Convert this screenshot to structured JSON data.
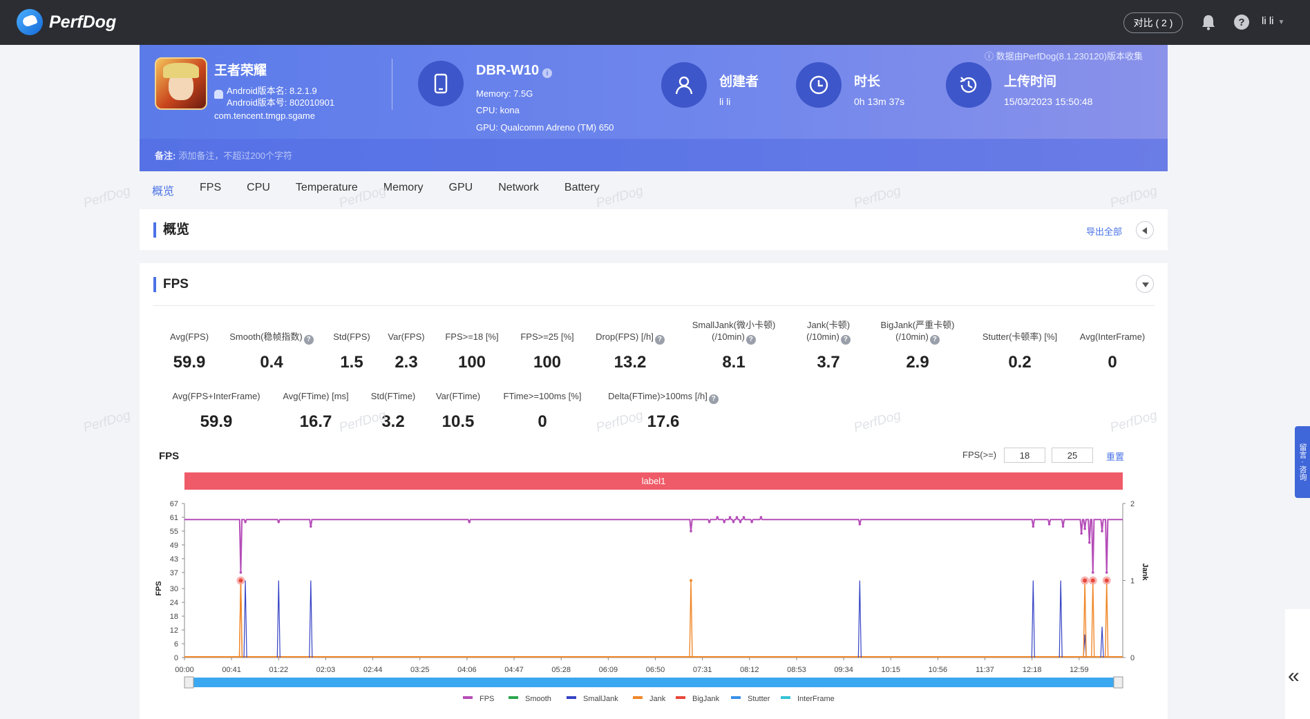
{
  "app": {
    "name": "PerfDog"
  },
  "topbar": {
    "compare_label": "对比 ( 2 )",
    "user_name": "li li",
    "colors": {
      "bg": "#2b2d33"
    }
  },
  "game": {
    "name": "王者荣耀",
    "version_name": "Android版本名: 8.2.1.9",
    "version_code": "Android版本号: 802010901",
    "package": "com.tencent.tmgp.sgame"
  },
  "device": {
    "name": "DBR-W10",
    "memory": "Memory: 7.5G",
    "cpu": "CPU: kona",
    "gpu": "GPU: Qualcomm Adreno (TM) 650"
  },
  "creator": {
    "title": "创建者",
    "value": "li li"
  },
  "duration": {
    "title": "时长",
    "value": "0h 13m 37s"
  },
  "upload": {
    "title": "上传时间",
    "value": "15/03/2023 15:50:48"
  },
  "collect_note": "ⓘ 数据由PerfDog(8.1.230120)版本收集",
  "note": {
    "label": "备注:",
    "placeholder": "添加备注，不超过200个字符"
  },
  "tabs": [
    "概览",
    "FPS",
    "CPU",
    "Temperature",
    "Memory",
    "GPU",
    "Network",
    "Battery"
  ],
  "overview": {
    "title": "概览",
    "export_label": "导出全部"
  },
  "fps_section": {
    "title": "FPS",
    "metrics_row1": [
      {
        "label": "Avg(FPS)",
        "value": "59.9"
      },
      {
        "label": "Smooth(稳帧指数)",
        "value": "0.4",
        "help": true
      },
      {
        "label": "Std(FPS)",
        "value": "1.5"
      },
      {
        "label": "Var(FPS)",
        "value": "2.3"
      },
      {
        "label": "FPS>=18 [%]",
        "value": "100"
      },
      {
        "label": "FPS>=25 [%]",
        "value": "100"
      },
      {
        "label": "Drop(FPS) [/h]",
        "value": "13.2",
        "help": true
      },
      {
        "label": "SmallJank(微小卡顿)",
        "label2": "(/10min)",
        "value": "8.1",
        "help": true
      },
      {
        "label": "Jank(卡顿)",
        "label2": "(/10min)",
        "value": "3.7",
        "help": true
      },
      {
        "label": "BigJank(严重卡顿)",
        "label2": "(/10min)",
        "value": "2.9",
        "help": true
      },
      {
        "label": "Stutter(卡顿率) [%]",
        "value": "0.2"
      },
      {
        "label": "Avg(InterFrame)",
        "value": "0"
      }
    ],
    "metrics_row2": [
      {
        "label": "Avg(FPS+InterFrame)",
        "value": "59.9"
      },
      {
        "label": "Avg(FTime) [ms]",
        "value": "16.7"
      },
      {
        "label": "Std(FTime)",
        "value": "3.2"
      },
      {
        "label": "Var(FTime)",
        "value": "10.5"
      },
      {
        "label": "FTime>=100ms [%]",
        "value": "0"
      },
      {
        "label": "Delta(FTime)>100ms [/h]",
        "value": "17.6",
        "help": true
      }
    ]
  },
  "chart_controls": {
    "title": "FPS",
    "threshold_label": "FPS(>=)",
    "threshold_1": "18",
    "threshold_2": "25",
    "reset_label": "重置",
    "label_bar": "label1"
  },
  "feedback_label": "留言 · 咨询",
  "watermark": "PerfDog",
  "chart_data": {
    "type": "line",
    "title": "",
    "xlabel": "",
    "ylabel": "FPS",
    "y2label": "Jank",
    "x_ticks": [
      "00:00",
      "00:41",
      "01:22",
      "02:03",
      "02:44",
      "03:25",
      "04:06",
      "04:47",
      "05:28",
      "06:09",
      "06:50",
      "07:31",
      "08:12",
      "08:53",
      "09:34",
      "10:15",
      "10:56",
      "11:37",
      "12:18",
      "12:59"
    ],
    "y_ticks": [
      0,
      6,
      12,
      18,
      24,
      30,
      37,
      43,
      49,
      55,
      61,
      67
    ],
    "y2_ticks": [
      0,
      1,
      2
    ],
    "ylim": [
      0,
      67
    ],
    "y2lim": [
      0,
      2
    ],
    "x_range_seconds": [
      0,
      817
    ],
    "series": [
      {
        "name": "FPS",
        "color": "#b54db8"
      },
      {
        "name": "Smooth",
        "color": "#2ca64d"
      },
      {
        "name": "SmallJank",
        "color": "#3442c4"
      },
      {
        "name": "Jank",
        "color": "#f0882a"
      },
      {
        "name": "BigJank",
        "color": "#e8473a"
      },
      {
        "name": "Stutter",
        "color": "#3a8fe8"
      },
      {
        "name": "InterFrame",
        "color": "#33c2d6"
      }
    ],
    "fps_baseline": 60,
    "fps_dips": [
      {
        "t": 49,
        "fps": 37
      },
      {
        "t": 53,
        "fps": 59
      },
      {
        "t": 82,
        "fps": 59
      },
      {
        "t": 110,
        "fps": 57
      },
      {
        "t": 248,
        "fps": 59
      },
      {
        "t": 441,
        "fps": 55
      },
      {
        "t": 457,
        "fps": 59
      },
      {
        "t": 464,
        "fps": 61
      },
      {
        "t": 470,
        "fps": 59
      },
      {
        "t": 475,
        "fps": 61
      },
      {
        "t": 478,
        "fps": 59
      },
      {
        "t": 481,
        "fps": 61
      },
      {
        "t": 484,
        "fps": 59
      },
      {
        "t": 487,
        "fps": 61
      },
      {
        "t": 494,
        "fps": 59
      },
      {
        "t": 502,
        "fps": 61
      },
      {
        "t": 588,
        "fps": 58
      },
      {
        "t": 739,
        "fps": 57
      },
      {
        "t": 753,
        "fps": 58
      },
      {
        "t": 765,
        "fps": 57
      },
      {
        "t": 781,
        "fps": 54
      },
      {
        "t": 784,
        "fps": 56
      },
      {
        "t": 788,
        "fps": 50
      },
      {
        "t": 791,
        "fps": 37
      },
      {
        "t": 799,
        "fps": 55
      },
      {
        "t": 803,
        "fps": 37
      }
    ],
    "small_jank": [
      {
        "t": 53,
        "v": 1
      },
      {
        "t": 82,
        "v": 1
      },
      {
        "t": 110,
        "v": 1
      },
      {
        "t": 588,
        "v": 1
      },
      {
        "t": 739,
        "v": 1
      },
      {
        "t": 763,
        "v": 1
      },
      {
        "t": 784,
        "v": 0.3
      },
      {
        "t": 799,
        "v": 0.4
      }
    ],
    "jank": [
      {
        "t": 49,
        "v": 1
      },
      {
        "t": 441,
        "v": 1
      }
    ],
    "big_jank": [
      {
        "t": 49,
        "v": 1
      },
      {
        "t": 784,
        "v": 1
      },
      {
        "t": 791,
        "v": 1
      },
      {
        "t": 803,
        "v": 1
      }
    ],
    "legend_position": "bottom"
  }
}
